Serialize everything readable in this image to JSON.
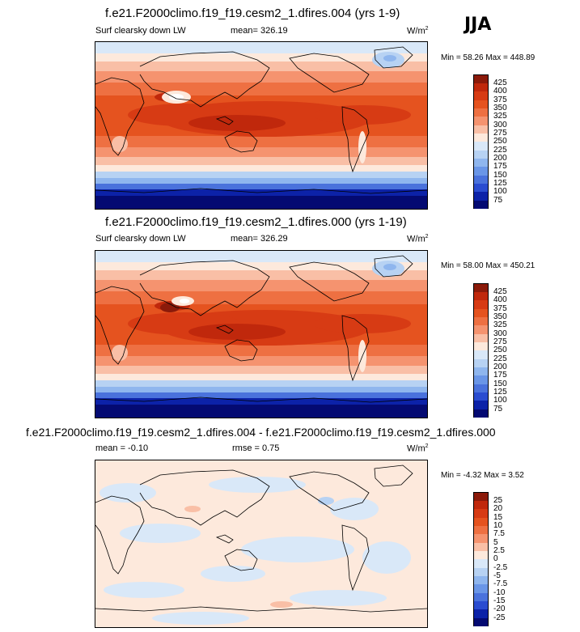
{
  "season": "JJA",
  "chart_data": [
    {
      "type": "heatmap",
      "title": "f.e21.F2000climo.f19_f19.cesm2_1.dfires.004 (yrs 1-9)",
      "variable": "Surf clearsky down LW",
      "mean_label": "mean= 326.19",
      "units": "W/m",
      "units_exp": "2",
      "min_max": "Min =  58.26 Max = 448.89",
      "levels": [
        "425",
        "400",
        "375",
        "350",
        "325",
        "300",
        "275",
        "250",
        "225",
        "200",
        "175",
        "150",
        "125",
        "100",
        "75"
      ],
      "colors": [
        "#8b1a0a",
        "#c0280c",
        "#d73b14",
        "#e5531f",
        "#ee7042",
        "#f5936f",
        "#f9bfa6",
        "#fde9dc",
        "#d9e8f8",
        "#b7d2f3",
        "#8fb6ee",
        "#6a96e7",
        "#4a72dc",
        "#2a4cd0",
        "#0c22a8",
        "#040a72"
      ]
    },
    {
      "type": "heatmap",
      "title": "f.e21.F2000climo.f19_f19.cesm2_1.dfires.000 (yrs 1-19)",
      "variable": "Surf clearsky down LW",
      "mean_label": "mean= 326.29",
      "units": "W/m",
      "units_exp": "2",
      "min_max": "Min =  58.00 Max = 450.21",
      "levels": [
        "425",
        "400",
        "375",
        "350",
        "325",
        "300",
        "275",
        "250",
        "225",
        "200",
        "175",
        "150",
        "125",
        "100",
        "75"
      ],
      "colors": [
        "#8b1a0a",
        "#c0280c",
        "#d73b14",
        "#e5531f",
        "#ee7042",
        "#f5936f",
        "#f9bfa6",
        "#fde9dc",
        "#d9e8f8",
        "#b7d2f3",
        "#8fb6ee",
        "#6a96e7",
        "#4a72dc",
        "#2a4cd0",
        "#0c22a8",
        "#040a72"
      ]
    },
    {
      "type": "heatmap",
      "title": "f.e21.F2000climo.f19_f19.cesm2_1.dfires.004 - f.e21.F2000climo.f19_f19.cesm2_1.dfires.000",
      "mean_label": "mean =  -0.10",
      "rmse_label": "rmse =   0.75",
      "units": "W/m",
      "units_exp": "2",
      "min_max": "Min = -4.32 Max =   3.52",
      "levels": [
        "25",
        "20",
        "15",
        "10",
        "7.5",
        "5",
        "2.5",
        "0",
        "-2.5",
        "-5",
        "-7.5",
        "-10",
        "-15",
        "-20",
        "-25"
      ],
      "colors": [
        "#8b1a0a",
        "#c0280c",
        "#d73b14",
        "#e5531f",
        "#ee7042",
        "#f5936f",
        "#f9bfa6",
        "#fde9dc",
        "#d9e8f8",
        "#b7d2f3",
        "#8fb6ee",
        "#6a96e7",
        "#4a72dc",
        "#2a4cd0",
        "#0c22a8",
        "#040a72"
      ]
    }
  ]
}
